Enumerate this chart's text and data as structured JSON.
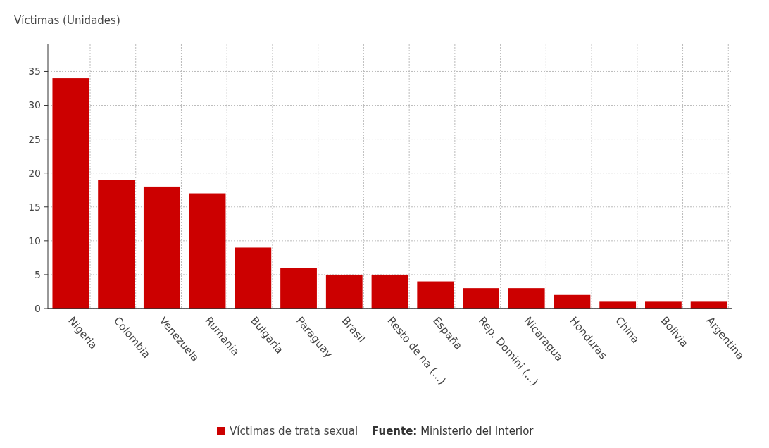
{
  "chart_data": {
    "type": "bar",
    "ylabel": "Víctimas (Unidades)",
    "categories": [
      "Nigeria",
      "Colombia",
      "Venezuela",
      "Rumania",
      "Bulgaria",
      "Paraguay",
      "Brasil",
      "Resto de na (...)",
      "España",
      "Rep. Domini (...)",
      "Nicaragua",
      "Honduras",
      "China",
      "Bolivia",
      "Argentina"
    ],
    "series": [
      {
        "name": "Víctimas de trata sexual",
        "color": "#cc0000",
        "values": [
          34,
          19,
          18,
          17,
          9,
          6,
          5,
          5,
          4,
          3,
          3,
          2,
          1,
          1,
          1
        ]
      }
    ],
    "ylim": [
      0,
      39
    ],
    "yticks": [
      0,
      5,
      10,
      15,
      20,
      25,
      30,
      35
    ],
    "grid": true,
    "legend": "bottom",
    "annotations": [
      "Fuente: Ministerio del Interior"
    ]
  }
}
